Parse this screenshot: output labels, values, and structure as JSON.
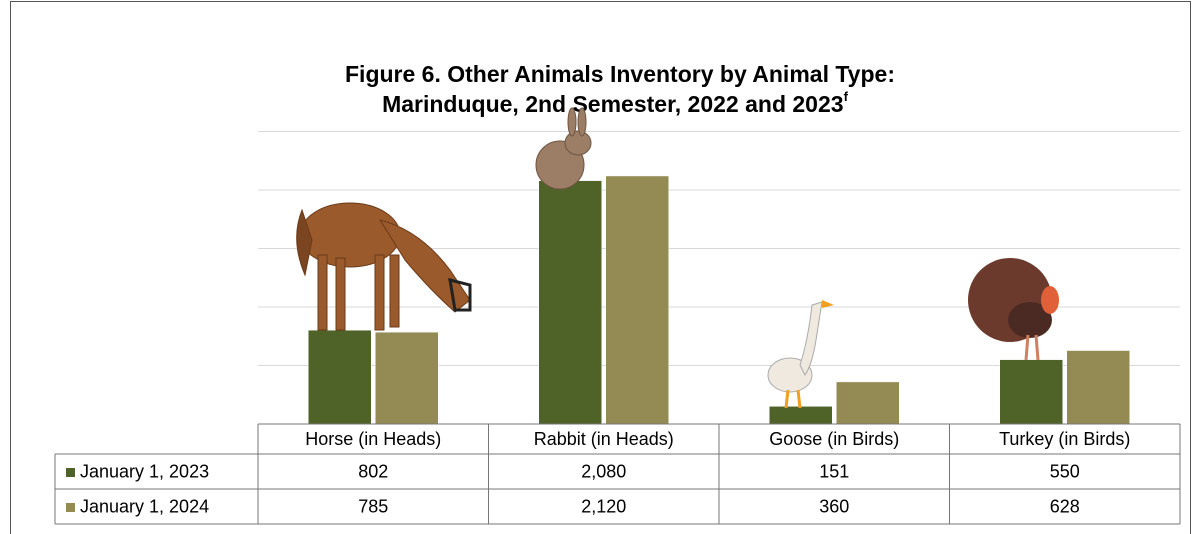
{
  "chart_data": {
    "type": "bar",
    "title": [
      "Figure 6. Other Animals Inventory by Animal Type:",
      "Marinduque, 2nd Semester, 2022 and 2023"
    ],
    "title_superscript": "f",
    "categories": [
      "Horse (in Heads)",
      "Rabbit (in Heads)",
      "Goose (in Birds)",
      "Turkey (in Birds)"
    ],
    "series": [
      {
        "name": "January 1, 2023",
        "color": "#4f6228",
        "values": [
          802,
          2080,
          151,
          550
        ],
        "value_labels": [
          "802",
          "2,080",
          "151",
          "550"
        ]
      },
      {
        "name": "January 1, 2024",
        "color": "#948a54",
        "values": [
          785,
          2120,
          360,
          628
        ],
        "value_labels": [
          "785",
          "2,120",
          "360",
          "628"
        ]
      }
    ],
    "ylim": [
      0,
      2500
    ],
    "yticks": [
      0,
      500,
      1000,
      1500,
      2000,
      2500
    ],
    "grid": true
  }
}
